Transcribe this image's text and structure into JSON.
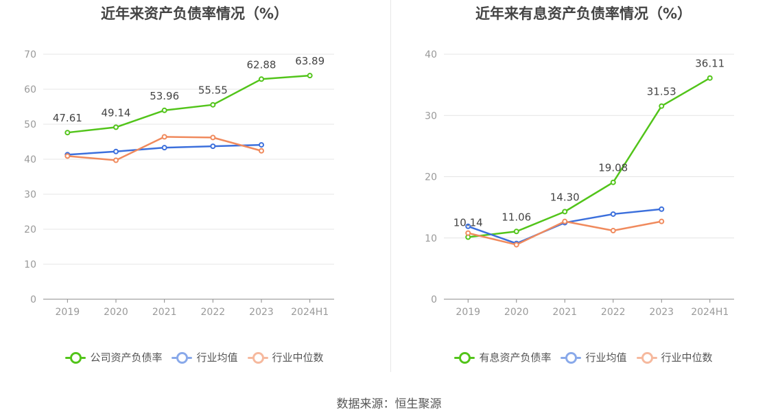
{
  "chart_data": [
    {
      "type": "line",
      "title": "近年来资产负债率情况（%）",
      "categories": [
        "2019",
        "2020",
        "2021",
        "2022",
        "2023",
        "2024H1"
      ],
      "y_ticks": [
        "0",
        "10",
        "20",
        "30",
        "40",
        "50",
        "60",
        "70"
      ],
      "ylim": [
        0,
        70
      ],
      "grid": true,
      "legend_position": "bottom",
      "series": [
        {
          "name": "公司资产负债率",
          "color": "#52c41a",
          "values": [
            47.61,
            49.14,
            53.96,
            55.55,
            62.88,
            63.89
          ],
          "labels": [
            "47.61",
            "49.14",
            "53.96",
            "55.55",
            "62.88",
            "63.89"
          ]
        },
        {
          "name": "行业均值",
          "color": "#3b6fdc",
          "values": [
            41.3,
            42.2,
            43.3,
            43.7,
            44.1,
            null
          ]
        },
        {
          "name": "行业中位数",
          "color": "#f08a5d",
          "values": [
            40.9,
            39.7,
            46.4,
            46.2,
            42.4,
            null
          ]
        }
      ]
    },
    {
      "type": "line",
      "title": "近年来有息资产负债率情况（%）",
      "categories": [
        "2019",
        "2020",
        "2021",
        "2022",
        "2023",
        "2024H1"
      ],
      "y_ticks": [
        "0",
        "10",
        "20",
        "30",
        "40"
      ],
      "ylim": [
        0,
        40
      ],
      "grid": true,
      "legend_position": "bottom",
      "series": [
        {
          "name": "有息资产负债率",
          "color": "#52c41a",
          "values": [
            10.14,
            11.06,
            14.3,
            19.08,
            31.53,
            36.11
          ],
          "labels": [
            "10.14",
            "11.06",
            "14.30",
            "19.08",
            "31.53",
            "36.11"
          ]
        },
        {
          "name": "行业均值",
          "color": "#3b6fdc",
          "values": [
            11.9,
            9.1,
            12.5,
            13.9,
            14.7,
            null
          ]
        },
        {
          "name": "行业中位数",
          "color": "#f08a5d",
          "values": [
            10.8,
            8.9,
            12.7,
            11.2,
            12.7,
            null
          ]
        }
      ]
    }
  ],
  "footer": {
    "source": "数据来源：恒生聚源"
  }
}
